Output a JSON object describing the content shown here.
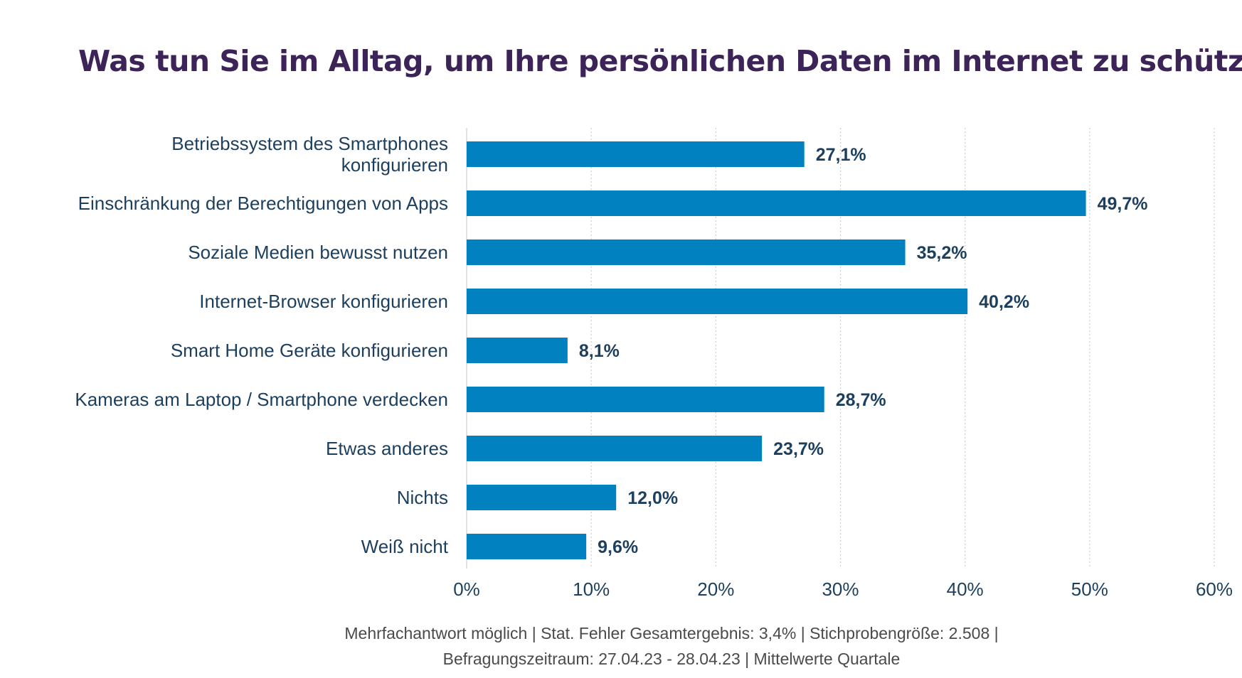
{
  "colors": {
    "bar": "#0281c0",
    "title": "#3c2358",
    "label": "#1c3f5e",
    "axis": "#1c3f5e",
    "grid": "#cfcfcf",
    "footnote": "#4a4a4a"
  },
  "chart_data": {
    "type": "bar",
    "orientation": "horizontal",
    "title": "Was tun Sie im Alltag, um Ihre persönlichen Daten im Internet zu schützen?",
    "categories": [
      [
        "Betriebssystem des Smartphones",
        "konfigurieren"
      ],
      [
        "Einschränkung der Berechtigungen von Apps"
      ],
      [
        "Soziale Medien bewusst nutzen"
      ],
      [
        "Internet-Browser konfigurieren"
      ],
      [
        "Smart Home Geräte konfigurieren"
      ],
      [
        "Kameras am Laptop / Smartphone verdecken"
      ],
      [
        "Etwas anderes"
      ],
      [
        "Nichts"
      ],
      [
        "Weiß nicht"
      ]
    ],
    "values": [
      27.1,
      49.7,
      35.2,
      40.2,
      8.1,
      28.7,
      23.7,
      12.0,
      9.6
    ],
    "value_labels": [
      "27,1%",
      "49,7%",
      "35,2%",
      "40,2%",
      "8,1%",
      "28,7%",
      "23,7%",
      "12,0%",
      "9,6%"
    ],
    "xlim": [
      0,
      60
    ],
    "xticks": [
      0,
      10,
      20,
      30,
      40,
      50,
      60
    ],
    "xtick_labels": [
      "0%",
      "10%",
      "20%",
      "30%",
      "40%",
      "50%",
      "60%"
    ],
    "grid": true,
    "legend": "none"
  },
  "footnote": {
    "line1": "Mehrfachantwort möglich | Stat. Fehler Gesamtergebnis: 3,4% | Stichprobengröße: 2.508 |",
    "line2": "Befragungszeitraum: 27.04.23 - 28.04.23 | Mittelwerte Quartale"
  }
}
